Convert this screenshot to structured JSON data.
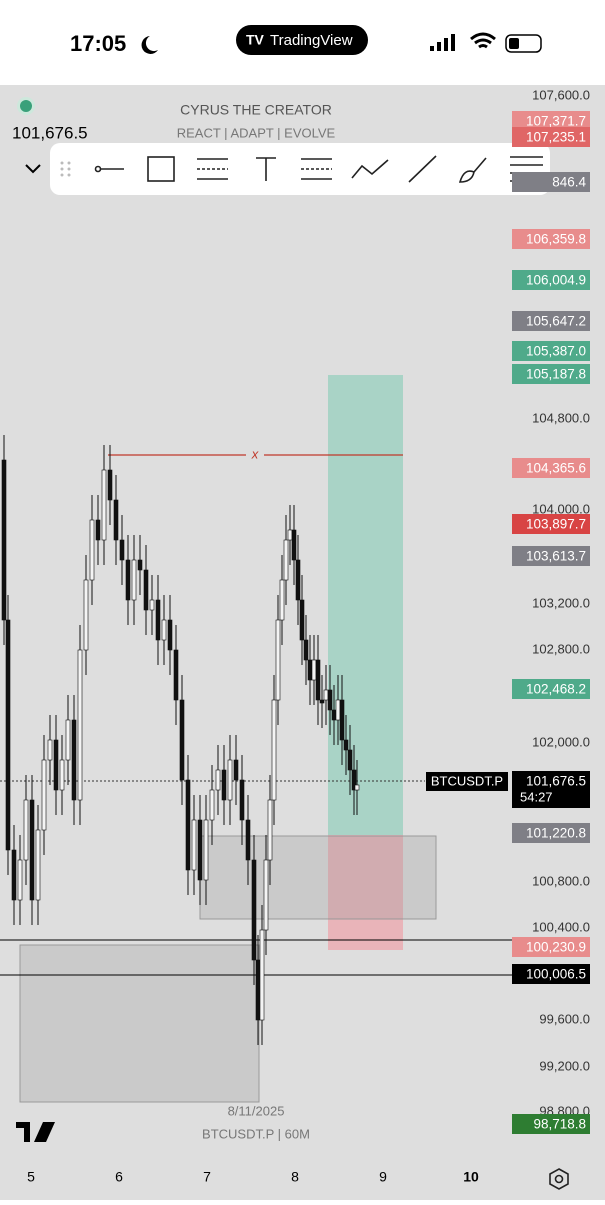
{
  "status_bar": {
    "time": "17:05",
    "app": "TradingView"
  },
  "header": {
    "price": "101,676.5",
    "title": "CYRUS THE CREATOR",
    "subtitle": "REACT  |  ADAPT  |  EVOLVE"
  },
  "price_axis": {
    "ticks": [
      "107,600.0",
      "104,800.0",
      "104,000.0",
      "103,200.0",
      "102,800.0",
      "102,000.0",
      "100,800.0",
      "100,400.0",
      "99,600.0",
      "99,200.0",
      "98,800.0"
    ]
  },
  "price_labels": [
    {
      "text": "107,371.7",
      "color": "#e88c8c"
    },
    {
      "text": "107,235.1",
      "color": "#e06666"
    },
    {
      "text": "846.4",
      "color": "#7f7f86"
    },
    {
      "text": "106,359.8",
      "color": "#e88c8c"
    },
    {
      "text": "106,004.9",
      "color": "#4faa8a"
    },
    {
      "text": "105,647.2",
      "color": "#7f7f86"
    },
    {
      "text": "105,387.0",
      "color": "#4faa8a"
    },
    {
      "text": "105,187.8",
      "color": "#4faa8a"
    },
    {
      "text": "104,365.6",
      "color": "#e88c8c"
    },
    {
      "text": "103,897.7",
      "color": "#d84444"
    },
    {
      "text": "103,613.7",
      "color": "#7f7f86"
    },
    {
      "text": "102,468.2",
      "color": "#4faa8a"
    },
    {
      "text": "101,676.5",
      "color": "#000000"
    },
    {
      "text": "101,220.8",
      "color": "#7f7f86"
    },
    {
      "text": "100,230.9",
      "color": "#e88c8c"
    },
    {
      "text": "100,006.5",
      "color": "#000000"
    },
    {
      "text": "98,718.8",
      "color": "#2e7d32"
    }
  ],
  "countdown": "54:27",
  "symbol_tag": "BTCUSDT.P",
  "marker": "x",
  "time_axis": [
    "5",
    "6",
    "7",
    "8",
    "9",
    "10"
  ],
  "footer": {
    "date": "8/11/2025",
    "symbol": "BTCUSDT.P | 60M"
  }
}
